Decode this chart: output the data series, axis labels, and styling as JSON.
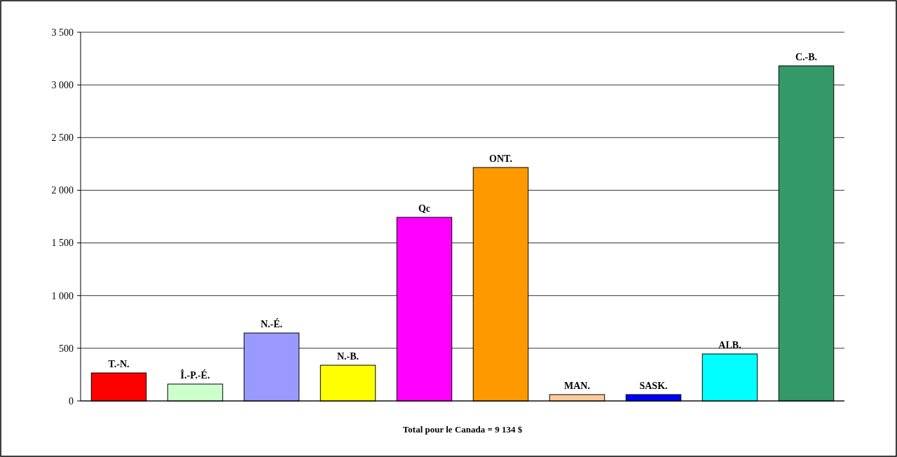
{
  "chart_data": {
    "type": "bar",
    "xlabel": "Total pour le Canada = 9 134 $",
    "categories": [
      "T.-N.",
      "Î.-P.-É.",
      "N.-É.",
      "N.-B.",
      "Qc",
      "ONT.",
      "MAN.",
      "SASK.",
      "ALB.",
      "C.-B."
    ],
    "values": [
      266,
      160,
      645,
      339,
      1743,
      2216,
      60,
      60,
      446,
      3181
    ],
    "colors": [
      "#ff0000",
      "#ccffcc",
      "#9999ff",
      "#ffff00",
      "#ff00ff",
      "#ff9900",
      "#ffcc99",
      "#0000ff",
      "#00ffff",
      "#339966"
    ],
    "ylim": [
      0,
      3500
    ],
    "yticks": [
      0,
      500,
      {
        "value": 1000,
        "label": "1 000"
      },
      {
        "value": 1500,
        "label": "1 500"
      },
      {
        "value": 2000,
        "label": "2 000"
      },
      {
        "value": 2500,
        "label": "2 500"
      },
      {
        "value": 3000,
        "label": "3 000"
      },
      {
        "value": 3500,
        "label": "3 500"
      }
    ],
    "grid": "y"
  }
}
